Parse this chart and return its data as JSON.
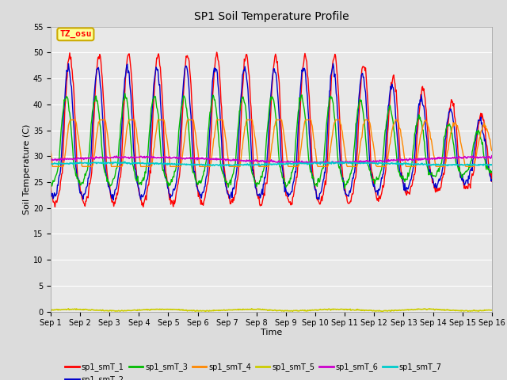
{
  "title": "SP1 Soil Temperature Profile",
  "xlabel": "Time",
  "ylabel": "Soil Temperature (C)",
  "ylim": [
    0,
    55
  ],
  "yticks": [
    0,
    5,
    10,
    15,
    20,
    25,
    30,
    35,
    40,
    45,
    50,
    55
  ],
  "xlim_days": 15,
  "colors": {
    "sp1_smT_1": "#FF0000",
    "sp1_smT_2": "#0000CC",
    "sp1_smT_3": "#00BB00",
    "sp1_smT_4": "#FF8800",
    "sp1_smT_5": "#CCCC00",
    "sp1_smT_6": "#CC00CC",
    "sp1_smT_7": "#00CCCC"
  },
  "bg_color": "#DCDCDC",
  "plot_bg_color": "#E8E8E8",
  "annotation_text": "TZ_osu",
  "annotation_bg": "#FFFF99",
  "annotation_edge": "#CCAA00",
  "figsize": [
    6.4,
    4.8
  ],
  "dpi": 100
}
